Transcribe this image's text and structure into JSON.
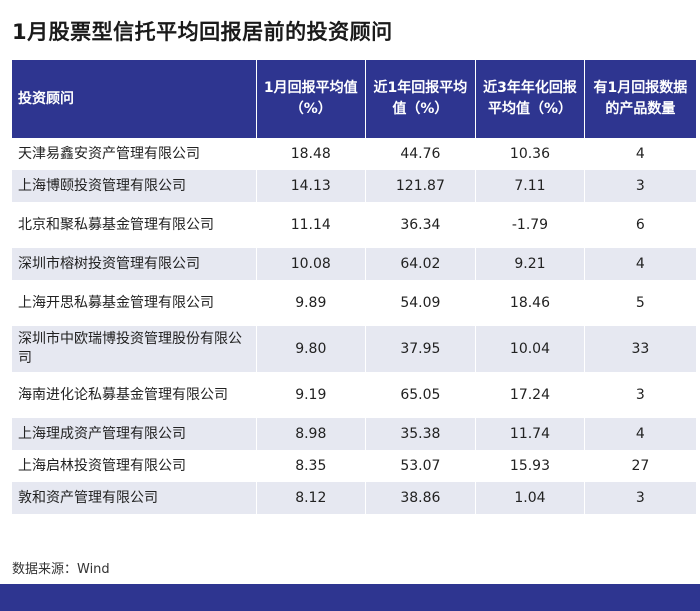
{
  "title": "1月股票型信托平均回报居前的投资顾问",
  "table": {
    "headers": [
      "投资顾问",
      "1月回报平均值（%）",
      "近1年回报平均值（%）",
      "近3年年化回报平均值（%）",
      "有1月回报数据的产品数量"
    ],
    "rows": [
      {
        "name": "天津易鑫安资产管理有限公司",
        "m1": "18.48",
        "y1": "44.76",
        "y3": "10.36",
        "count": "4"
      },
      {
        "name": "上海博颐投资管理有限公司",
        "m1": "14.13",
        "y1": "121.87",
        "y3": "7.11",
        "count": "3"
      },
      {
        "name": "北京和聚私募基金管理有限公司",
        "m1": "11.14",
        "y1": "36.34",
        "y3": "-1.79",
        "count": "6"
      },
      {
        "name": "深圳市榕树投资管理有限公司",
        "m1": "10.08",
        "y1": "64.02",
        "y3": "9.21",
        "count": "4"
      },
      {
        "name": "上海开思私募基金管理有限公司",
        "m1": "9.89",
        "y1": "54.09",
        "y3": "18.46",
        "count": "5"
      },
      {
        "name": "深圳市中欧瑞博投资管理股份有限公司",
        "m1": "9.80",
        "y1": "37.95",
        "y3": "10.04",
        "count": "33"
      },
      {
        "name": "海南进化论私募基金管理有限公司",
        "m1": "9.19",
        "y1": "65.05",
        "y3": "17.24",
        "count": "3"
      },
      {
        "name": "上海理成资产管理有限公司",
        "m1": "8.98",
        "y1": "35.38",
        "y3": "11.74",
        "count": "4"
      },
      {
        "name": "上海启林投资管理有限公司",
        "m1": "8.35",
        "y1": "53.07",
        "y3": "15.93",
        "count": "27"
      },
      {
        "name": "敦和资产管理有限公司",
        "m1": "8.12",
        "y1": "38.86",
        "y3": "1.04",
        "count": "3"
      }
    ]
  },
  "source": "数据来源：Wind",
  "colors": {
    "header_bg": "#2e3590",
    "stripe": "#e6e8f1"
  }
}
